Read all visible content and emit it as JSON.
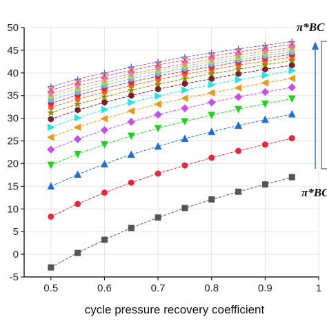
{
  "chart_data": {
    "type": "line",
    "xlabel": "cycle pressure recovery coefficient",
    "ylabel": "",
    "xlim": [
      0.45,
      1.0
    ],
    "ylim": [
      -5,
      50
    ],
    "x": [
      0.5,
      0.55,
      0.6,
      0.65,
      0.7,
      0.75,
      0.8,
      0.85,
      0.9,
      0.95
    ],
    "x_tick_values": [
      0.5,
      0.6,
      0.7,
      0.8,
      0.9,
      1.0
    ],
    "x_tick_labels": [
      "0.5",
      "0.6",
      "0.7",
      "0.8",
      "0.9",
      "1"
    ],
    "y_tick_values": [
      -5,
      0,
      5,
      10,
      15,
      20,
      25,
      30,
      35,
      40,
      45,
      50
    ],
    "y_tick_labels": [
      "-5",
      "0",
      "5",
      "10",
      "15",
      "20",
      "25",
      "30",
      "35",
      "40",
      "45",
      "50"
    ],
    "grid": true,
    "legend_position": "right",
    "legend_title_top": "π*BC =",
    "legend_title_bottom": "π*BC =",
    "series": [
      {
        "marker": "square",
        "color": "#555555",
        "values": [
          -2.9,
          0.3,
          3.2,
          5.8,
          8.1,
          10.2,
          12.1,
          13.8,
          15.4,
          17.0
        ]
      },
      {
        "marker": "circle",
        "color": "#e8273e",
        "values": [
          8.3,
          11.1,
          13.6,
          15.8,
          17.8,
          19.6,
          21.3,
          22.8,
          24.2,
          25.6
        ]
      },
      {
        "marker": "triangle-up",
        "color": "#1f6fd1",
        "values": [
          15.0,
          17.6,
          19.9,
          22.0,
          23.8,
          25.5,
          27.0,
          28.4,
          29.7,
          30.9
        ]
      },
      {
        "marker": "triangle-down",
        "color": "#1ed41e",
        "values": [
          19.7,
          22.1,
          24.2,
          26.1,
          27.8,
          29.3,
          30.7,
          32.0,
          33.2,
          34.3
        ]
      },
      {
        "marker": "diamond",
        "color": "#c74ee8",
        "values": [
          23.1,
          25.4,
          27.4,
          29.2,
          30.8,
          32.2,
          33.5,
          34.7,
          35.8,
          36.8
        ]
      },
      {
        "marker": "triangle-left",
        "color": "#e89a17",
        "values": [
          25.8,
          28.0,
          29.9,
          31.6,
          33.1,
          34.4,
          35.6,
          36.7,
          37.8,
          38.8
        ]
      },
      {
        "marker": "triangle-right",
        "color": "#26e3e0",
        "values": [
          28.0,
          30.1,
          31.9,
          33.5,
          34.9,
          36.2,
          37.4,
          38.5,
          39.5,
          40.5
        ]
      },
      {
        "marker": "hexagon",
        "color": "#7a1f2e",
        "values": [
          29.8,
          31.8,
          33.5,
          35.0,
          36.4,
          37.6,
          38.7,
          39.8,
          40.8,
          41.7
        ]
      },
      {
        "marker": "star",
        "color": "#8a8a00",
        "values": [
          31.2,
          33.1,
          34.7,
          36.2,
          37.5,
          38.7,
          39.8,
          40.8,
          41.8,
          42.7
        ]
      },
      {
        "marker": "pentagon",
        "color": "#f0641e",
        "values": [
          32.4,
          34.2,
          35.8,
          37.2,
          38.5,
          39.7,
          40.7,
          41.7,
          42.6,
          43.5
        ]
      },
      {
        "marker": "circle",
        "color": "#e8273e",
        "values": [
          33.3,
          35.1,
          36.6,
          38.0,
          39.3,
          40.4,
          41.4,
          42.4,
          43.3,
          44.1
        ]
      },
      {
        "marker": "circle",
        "color": "#5fb8f0",
        "values": [
          34.1,
          35.8,
          37.3,
          38.7,
          39.9,
          41.0,
          42.0,
          42.9,
          43.8,
          44.6
        ]
      },
      {
        "marker": "hexagon",
        "color": "#b8d64a",
        "values": [
          34.8,
          36.5,
          37.9,
          39.3,
          40.5,
          41.5,
          42.5,
          43.4,
          44.3,
          45.1
        ]
      },
      {
        "marker": "triangle-down",
        "color": "#e878b8",
        "values": [
          35.4,
          37.1,
          38.5,
          39.8,
          41.0,
          42.0,
          43.0,
          43.9,
          44.8,
          45.6
        ]
      },
      {
        "marker": "x",
        "color": "#e0504a",
        "values": [
          36.2,
          37.9,
          39.3,
          40.6,
          41.8,
          42.8,
          43.7,
          44.6,
          45.5,
          46.3
        ]
      },
      {
        "marker": "plus",
        "color": "#7b5cc0",
        "values": [
          37.0,
          38.6,
          40.0,
          41.3,
          42.4,
          43.5,
          44.4,
          45.3,
          46.1,
          46.9
        ]
      }
    ]
  }
}
